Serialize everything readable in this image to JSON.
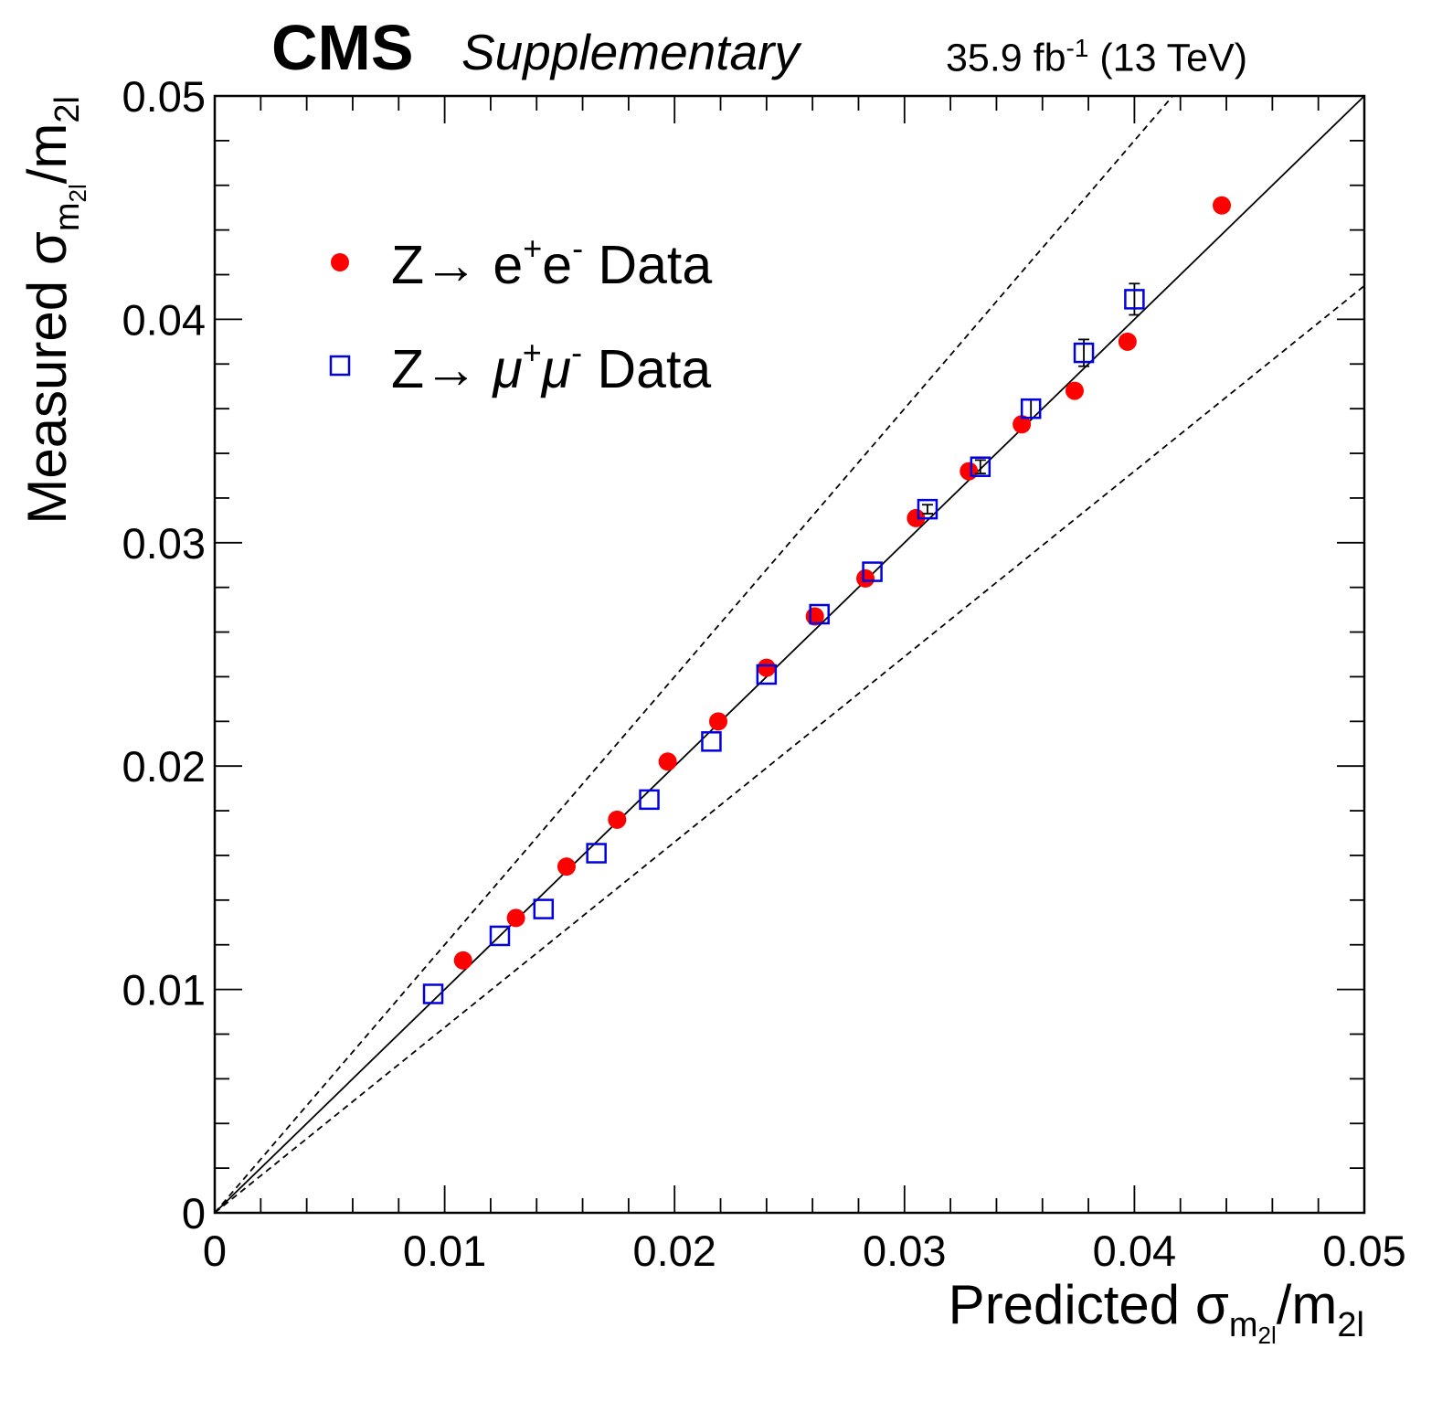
{
  "header": {
    "experiment": "CMS",
    "label": "Supplementary",
    "lumi_prefix": "35.9 fb",
    "lumi_exponent": "-1",
    "lumi_suffix": " (13 TeV)"
  },
  "colors": {
    "electron": "#ff0000",
    "muon": "#0000e0",
    "axis": "#000000"
  },
  "chart_data": {
    "type": "scatter",
    "title": "",
    "xlabel": "Predicted σ_m2l/m2l",
    "ylabel": "Measured σ_m2l/m2l",
    "xlabel_parts": {
      "main": "Predicted σ",
      "sub": "m",
      "subsub": "2l",
      "after": "/m",
      "after_sub": "2l"
    },
    "ylabel_parts": {
      "main": "Measured σ",
      "sub": "m",
      "subsub": "2l",
      "after": "/m",
      "after_sub": "2l"
    },
    "xlim": [
      0,
      0.05
    ],
    "ylim": [
      0,
      0.05
    ],
    "xticks": [
      "0",
      "0.01",
      "0.02",
      "0.03",
      "0.04",
      "0.05"
    ],
    "yticks": [
      "0",
      "0.01",
      "0.02",
      "0.03",
      "0.04",
      "0.05"
    ],
    "reference_lines": [
      {
        "name": "identity",
        "slope": 1.0,
        "style": "solid"
      },
      {
        "name": "upper",
        "slope": 1.2,
        "style": "dashed"
      },
      {
        "name": "lower",
        "slope": 0.83,
        "style": "dashed"
      }
    ],
    "legend": [
      {
        "label": "Z→ e+e- Data",
        "text_main": "Z→ e",
        "sup1": "+",
        "mid": "e",
        "sup2": "-",
        "tail": " Data",
        "marker": "filled-circle"
      },
      {
        "label": "Z→ μ+μ- Data",
        "text_main": "Z→ ",
        "greek1": "μ",
        "sup1": "+",
        "greek2": "μ",
        "sup2": "-",
        "tail": " Data",
        "marker": "open-square"
      }
    ],
    "series": [
      {
        "name": "Z→ e+e- Data",
        "marker": "filled-circle",
        "x": [
          0.0108,
          0.0131,
          0.0153,
          0.0175,
          0.0197,
          0.0219,
          0.024,
          0.0261,
          0.0283,
          0.0305,
          0.0328,
          0.0351,
          0.0374,
          0.0397,
          0.0438
        ],
        "y": [
          0.0113,
          0.0132,
          0.0155,
          0.0176,
          0.0202,
          0.022,
          0.0244,
          0.0267,
          0.0284,
          0.0311,
          0.0332,
          0.0353,
          0.0368,
          0.039,
          0.0451
        ],
        "yerr": [
          0,
          0,
          0,
          0,
          0,
          0,
          0,
          0,
          0,
          0,
          0,
          0,
          0,
          0,
          0
        ]
      },
      {
        "name": "Z→ μ+μ- Data",
        "marker": "open-square",
        "x": [
          0.0095,
          0.0124,
          0.0143,
          0.0166,
          0.0189,
          0.0216,
          0.024,
          0.0263,
          0.0286,
          0.031,
          0.0333,
          0.0355,
          0.0378,
          0.04
        ],
        "y": [
          0.0098,
          0.0124,
          0.0136,
          0.0161,
          0.0185,
          0.0211,
          0.0241,
          0.0268,
          0.0287,
          0.0315,
          0.0334,
          0.036,
          0.0385,
          0.0409
        ],
        "yerr": [
          0,
          0,
          0,
          0,
          0,
          0,
          0,
          0,
          0,
          0.0002,
          0.0003,
          0.0004,
          0.0006,
          0.0007
        ]
      }
    ]
  }
}
